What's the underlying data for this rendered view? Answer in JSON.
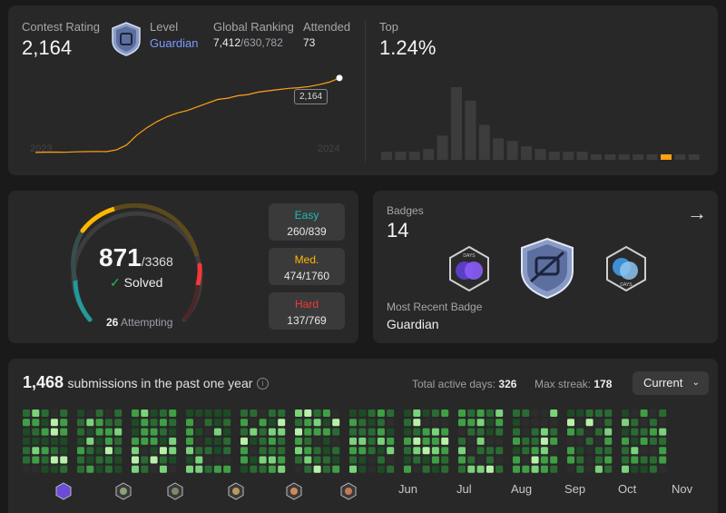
{
  "contest": {
    "rating_label": "Contest Rating",
    "rating_value": "2,164",
    "level_label": "Level",
    "level_value": "Guardian",
    "ranking_label": "Global Ranking",
    "ranking_value": "7,412",
    "ranking_total": "/630,782",
    "attended_label": "Attended",
    "attended_value": "73",
    "tooltip_value": "2,164",
    "year_start": "2023",
    "year_end": "2024",
    "top_label": "Top",
    "top_value": "1.24%"
  },
  "chart_data": [
    {
      "type": "line",
      "x": [
        0,
        1,
        2,
        3,
        4,
        5,
        6,
        7,
        8,
        9,
        10,
        11,
        12,
        13,
        14,
        15,
        16,
        17,
        18,
        19,
        20,
        21,
        22,
        23,
        24,
        25,
        26,
        27,
        28,
        29,
        30
      ],
      "values": [
        1560,
        1562,
        1563,
        1561,
        1565,
        1566,
        1568,
        1566,
        1580,
        1620,
        1700,
        1760,
        1810,
        1850,
        1880,
        1900,
        1930,
        1960,
        1990,
        2000,
        2020,
        2030,
        2050,
        2060,
        2070,
        2080,
        2085,
        2095,
        2110,
        2130,
        2164
      ],
      "xlabel": "",
      "ylabel": "",
      "tick_labels": [
        "2023",
        "2024"
      ]
    },
    {
      "type": "bar",
      "values": [
        3,
        3,
        3,
        4,
        9,
        27,
        22,
        13,
        8,
        7,
        5,
        4,
        3,
        3,
        3,
        2,
        2,
        2,
        2,
        2,
        2,
        2,
        2
      ],
      "highlight_index": 20,
      "colors": {
        "normal": "#3c3c3c",
        "highlight": "#ffa116"
      }
    }
  ],
  "solved": {
    "count": "871",
    "total": "/3368",
    "solved_label": "Solved",
    "attempting_count": "26",
    "attempting_label": "Attempting",
    "easy_label": "Easy",
    "easy_value": "260/839",
    "med_label": "Med.",
    "med_value": "474/1760",
    "hard_label": "Hard",
    "hard_value": "137/769",
    "colors": {
      "easy": "#1cbaba",
      "medium": "#ffb700",
      "hard": "#f63737"
    }
  },
  "badges": {
    "label": "Badges",
    "count": "14",
    "recent_label": "Most Recent Badge",
    "recent_value": "Guardian",
    "icons": [
      "days-badge-icon",
      "guardian-badge-icon",
      "days-badge-blue-icon"
    ]
  },
  "submissions": {
    "count": "1,468",
    "label": "submissions in the past one year",
    "active_days_label": "Total active days:",
    "active_days_value": "326",
    "max_streak_label": "Max streak:",
    "max_streak_value": "178",
    "dropdown_value": "Current",
    "months": [
      "Jun",
      "Jul",
      "Aug",
      "Sep",
      "Oct",
      "Nov"
    ]
  }
}
